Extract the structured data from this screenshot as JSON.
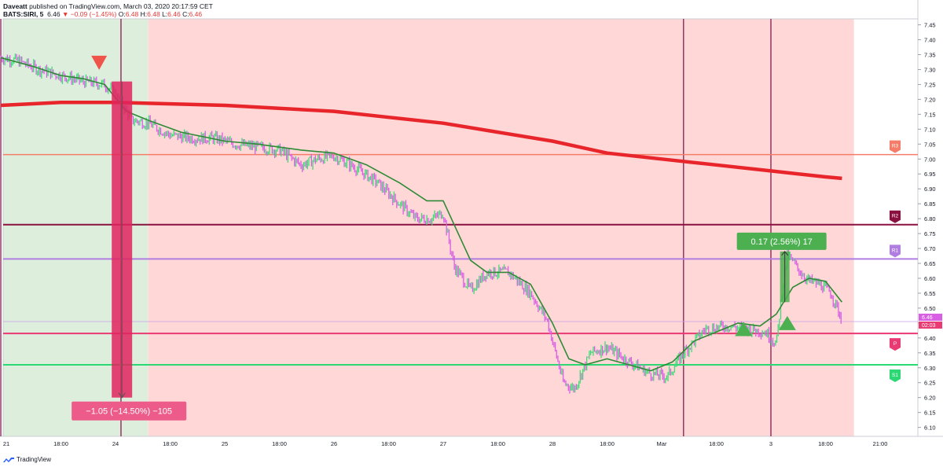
{
  "header": {
    "publisher": "Daveatt",
    "published_text": "published on TradingView.com, March 03, 2020 20:17:59 CET",
    "symbol": "BATS:SIRI, 5",
    "last": "6.46",
    "change": "▼ −0.09 (−1.45%)",
    "o_label": "O:",
    "o": "6.48",
    "h_label": "H:",
    "h": "6.48",
    "l_label": "L:",
    "l": "6.46",
    "c_label": "C:",
    "c": "6.46"
  },
  "footer": {
    "brand": "TradingView"
  },
  "colors": {
    "bg_green": "#deeedd",
    "bg_red": "#fed7d6",
    "ema_long": "#e8252a",
    "ema_short": "#2e8a36",
    "bar_up": "#3ddc77",
    "bar_down": "#d85ee3",
    "r3": "#f47c68",
    "r2": "#8a1040",
    "r1": "#b07ee0",
    "p": "#ea3a74",
    "s1": "#2bd873",
    "session_line": "#8a2a5a"
  },
  "chart_data": {
    "type": "candlestick",
    "symbol": "BATS:SIRI",
    "timeframe": "5",
    "ylim": [
      6.07,
      7.47
    ],
    "y_ticks": [
      6.1,
      6.15,
      6.2,
      6.25,
      6.3,
      6.35,
      6.4,
      6.45,
      6.5,
      6.55,
      6.6,
      6.65,
      6.7,
      6.75,
      6.8,
      6.85,
      6.9,
      6.95,
      7.0,
      7.05,
      7.1,
      7.15,
      7.2,
      7.25,
      7.3,
      7.35,
      7.4,
      7.45
    ],
    "x_tick_labels": [
      {
        "label": "21",
        "t": 0.0
      },
      {
        "label": "18:00",
        "t": 0.5
      },
      {
        "label": "24",
        "t": 1.0
      },
      {
        "label": "18:00",
        "t": 1.5
      },
      {
        "label": "25",
        "t": 2.0
      },
      {
        "label": "18:00",
        "t": 2.5
      },
      {
        "label": "26",
        "t": 3.0
      },
      {
        "label": "18:00",
        "t": 3.5
      },
      {
        "label": "27",
        "t": 4.0
      },
      {
        "label": "18:00",
        "t": 4.5
      },
      {
        "label": "28",
        "t": 5.0
      },
      {
        "label": "18:00",
        "t": 5.5
      },
      {
        "label": "Mar",
        "t": 6.0
      },
      {
        "label": "18:00",
        "t": 6.5
      },
      {
        "label": "3",
        "t": 7.0
      },
      {
        "label": "18:00",
        "t": 7.5
      },
      {
        "label": "21:00",
        "t": 8.0
      }
    ],
    "levels": [
      {
        "name": "R3",
        "value": 7.015
      },
      {
        "name": "R2",
        "value": 6.78
      },
      {
        "name": "R1",
        "value": 6.665
      },
      {
        "name": "P",
        "value": 6.415
      },
      {
        "name": "S1",
        "value": 6.31
      }
    ],
    "current_price_label": "6.46",
    "countdown_label": "02:03",
    "current_price": 6.455,
    "ema_long": [
      [
        -0.05,
        7.18
      ],
      [
        0.5,
        7.19
      ],
      [
        1.0,
        7.19
      ],
      [
        2.0,
        7.18
      ],
      [
        3.0,
        7.16
      ],
      [
        3.5,
        7.14
      ],
      [
        4.0,
        7.12
      ],
      [
        4.5,
        7.09
      ],
      [
        5.0,
        7.06
      ],
      [
        5.5,
        7.02
      ],
      [
        6.0,
        7.0
      ],
      [
        6.5,
        6.98
      ],
      [
        7.0,
        6.96
      ],
      [
        7.5,
        6.94
      ],
      [
        7.65,
        6.935
      ]
    ],
    "ema_short": [
      [
        -0.05,
        7.34
      ],
      [
        0.25,
        7.31
      ],
      [
        0.5,
        7.28
      ],
      [
        0.7,
        7.27
      ],
      [
        0.9,
        7.25
      ],
      [
        1.1,
        7.16
      ],
      [
        1.3,
        7.13
      ],
      [
        1.6,
        7.09
      ],
      [
        2.0,
        7.06
      ],
      [
        2.3,
        7.05
      ],
      [
        2.7,
        7.03
      ],
      [
        3.0,
        7.02
      ],
      [
        3.3,
        6.98
      ],
      [
        3.6,
        6.92
      ],
      [
        3.85,
        6.86
      ],
      [
        4.0,
        6.86
      ],
      [
        4.15,
        6.74
      ],
      [
        4.25,
        6.66
      ],
      [
        4.4,
        6.62
      ],
      [
        4.6,
        6.62
      ],
      [
        4.8,
        6.58
      ],
      [
        5.0,
        6.45
      ],
      [
        5.15,
        6.33
      ],
      [
        5.3,
        6.31
      ],
      [
        5.5,
        6.33
      ],
      [
        5.7,
        6.31
      ],
      [
        5.9,
        6.29
      ],
      [
        6.1,
        6.32
      ],
      [
        6.3,
        6.39
      ],
      [
        6.5,
        6.42
      ],
      [
        6.7,
        6.45
      ],
      [
        6.9,
        6.44
      ],
      [
        7.05,
        6.48
      ],
      [
        7.2,
        6.57
      ],
      [
        7.35,
        6.6
      ],
      [
        7.5,
        6.59
      ],
      [
        7.65,
        6.52
      ]
    ],
    "price_path": [
      [
        -0.05,
        7.34
      ],
      [
        0.1,
        7.33
      ],
      [
        0.3,
        7.3
      ],
      [
        0.5,
        7.28
      ],
      [
        0.7,
        7.26
      ],
      [
        0.9,
        7.25
      ],
      [
        1.0,
        7.22
      ],
      [
        1.15,
        7.13
      ],
      [
        1.3,
        7.12
      ],
      [
        1.5,
        7.08
      ],
      [
        1.7,
        7.07
      ],
      [
        1.9,
        7.07
      ],
      [
        2.1,
        7.05
      ],
      [
        2.3,
        7.04
      ],
      [
        2.5,
        7.03
      ],
      [
        2.7,
        6.98
      ],
      [
        2.85,
        7.0
      ],
      [
        3.0,
        7.01
      ],
      [
        3.2,
        6.97
      ],
      [
        3.4,
        6.92
      ],
      [
        3.6,
        6.85
      ],
      [
        3.75,
        6.8
      ],
      [
        3.9,
        6.8
      ],
      [
        4.0,
        6.82
      ],
      [
        4.1,
        6.64
      ],
      [
        4.25,
        6.56
      ],
      [
        4.4,
        6.62
      ],
      [
        4.6,
        6.62
      ],
      [
        4.8,
        6.55
      ],
      [
        4.95,
        6.46
      ],
      [
        5.1,
        6.25
      ],
      [
        5.2,
        6.23
      ],
      [
        5.35,
        6.35
      ],
      [
        5.5,
        6.37
      ],
      [
        5.7,
        6.32
      ],
      [
        5.9,
        6.28
      ],
      [
        6.05,
        6.27
      ],
      [
        6.2,
        6.35
      ],
      [
        6.4,
        6.43
      ],
      [
        6.6,
        6.44
      ],
      [
        6.8,
        6.43
      ],
      [
        6.95,
        6.42
      ],
      [
        7.05,
        6.38
      ],
      [
        7.1,
        6.55
      ],
      [
        7.15,
        6.68
      ],
      [
        7.25,
        6.63
      ],
      [
        7.35,
        6.59
      ],
      [
        7.45,
        6.58
      ],
      [
        7.55,
        6.55
      ],
      [
        7.65,
        6.46
      ]
    ],
    "session_lines_t": [
      -0.05,
      1.05,
      6.2,
      7.0
    ],
    "green_zone_t": [
      -0.2,
      1.3
    ],
    "red_zone_t": [
      1.3,
      7.76
    ],
    "measure_down": {
      "label": "−1.05 (−14.50%) −105",
      "t": 1.03,
      "from": 7.26,
      "to": 6.2
    },
    "measure_up": {
      "label": "0.17 (2.56%) 17",
      "t": 7.12,
      "from": 6.52,
      "to": 6.69
    },
    "markers": [
      {
        "type": "sell",
        "t": 0.85,
        "price": 7.32
      },
      {
        "type": "buy",
        "t": 6.75,
        "price": 6.43
      },
      {
        "type": "buy",
        "t": 7.15,
        "price": 6.45
      }
    ]
  }
}
